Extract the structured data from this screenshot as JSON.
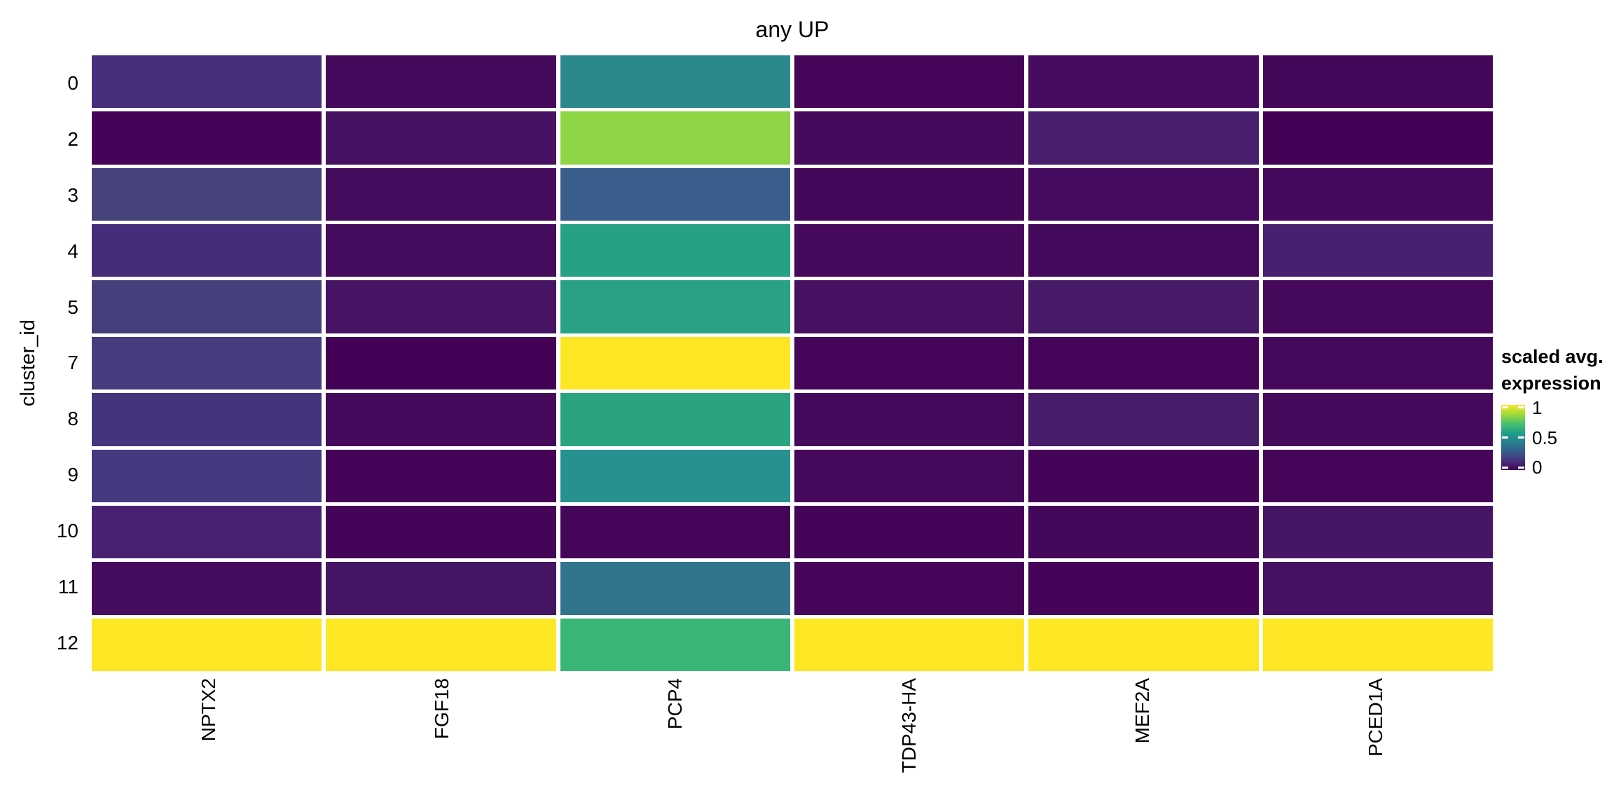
{
  "title": "any UP",
  "y_axis": {
    "label": "cluster_id",
    "ticks": [
      "0",
      "2",
      "3",
      "4",
      "5",
      "7",
      "8",
      "9",
      "10",
      "11",
      "12"
    ]
  },
  "x_axis": {
    "ticks": [
      "NPTX2",
      "FGF18",
      "PCP4",
      "TDP43-HA",
      "MEF2A",
      "PCED1A"
    ]
  },
  "legend": {
    "title_line1": "scaled avg.",
    "title_line2": "expression",
    "tick_labels": [
      "1",
      "0.5",
      "0"
    ],
    "gradient_top_to_bottom": [
      "#fde725",
      "#9fda3a",
      "#4ac16d",
      "#1fa187",
      "#277f8e",
      "#365c8d",
      "#46327e",
      "#440154"
    ]
  },
  "chart_data": {
    "type": "heatmap",
    "title": "any UP",
    "xlabel": "",
    "ylabel": "cluster_id",
    "legend_title": "scaled avg. expression",
    "colormap": "viridis",
    "color_domain": [
      0,
      1
    ],
    "legend_ticks": [
      0,
      0.5,
      1
    ],
    "rows_cluster_id": [
      "0",
      "2",
      "3",
      "4",
      "5",
      "7",
      "8",
      "9",
      "10",
      "11",
      "12"
    ],
    "columns_genes": [
      "NPTX2",
      "FGF18",
      "PCP4",
      "TDP43-HA",
      "MEF2A",
      "PCED1A"
    ],
    "values": [
      [
        0.11,
        0.03,
        0.46,
        0.02,
        0.03,
        0.02
      ],
      [
        0.01,
        0.05,
        0.83,
        0.03,
        0.07,
        0.01
      ],
      [
        0.18,
        0.03,
        0.3,
        0.02,
        0.03,
        0.03
      ],
      [
        0.11,
        0.03,
        0.59,
        0.03,
        0.02,
        0.08
      ],
      [
        0.17,
        0.05,
        0.59,
        0.04,
        0.06,
        0.02
      ],
      [
        0.16,
        0.0,
        1.0,
        0.02,
        0.02,
        0.02
      ],
      [
        0.13,
        0.02,
        0.61,
        0.02,
        0.07,
        0.03
      ],
      [
        0.15,
        0.01,
        0.5,
        0.02,
        0.01,
        0.02
      ],
      [
        0.09,
        0.01,
        0.02,
        0.01,
        0.02,
        0.05
      ],
      [
        0.03,
        0.05,
        0.4,
        0.02,
        0.01,
        0.04
      ],
      [
        1.0,
        1.0,
        0.68,
        1.0,
        1.0,
        1.0
      ]
    ],
    "cell_colors": [
      [
        "#472d7b",
        "#450a5c",
        "#2b898e",
        "#450659",
        "#470c5f",
        "#45075a"
      ],
      [
        "#450457",
        "#461261",
        "#8ed645",
        "#450a5c",
        "#481f6c",
        "#440256"
      ],
      [
        "#46427c",
        "#450c5d",
        "#3a5e8c",
        "#45075a",
        "#460b5e",
        "#46095d"
      ],
      [
        "#472c7a",
        "#450b5d",
        "#26a185",
        "#46095c",
        "#45095b",
        "#482071"
      ],
      [
        "#45407c",
        "#471465",
        "#28a184",
        "#471060",
        "#471a68",
        "#45085b"
      ],
      [
        "#453d7d",
        "#440256",
        "#fde725",
        "#45065a",
        "#45065a",
        "#46085c"
      ],
      [
        "#46337d",
        "#45085b",
        "#2aa480",
        "#45095b",
        "#471c69",
        "#450a5b"
      ],
      [
        "#443a80",
        "#440357",
        "#269190",
        "#45085b",
        "#440458",
        "#45065a"
      ],
      [
        "#482173",
        "#440458",
        "#450659",
        "#440457",
        "#450759",
        "#471566"
      ],
      [
        "#460d5e",
        "#471566",
        "#31748e",
        "#450659",
        "#45045a",
        "#461163"
      ],
      [
        "#fde725",
        "#fde725",
        "#39b677",
        "#fde725",
        "#fde725",
        "#fde725"
      ]
    ]
  }
}
